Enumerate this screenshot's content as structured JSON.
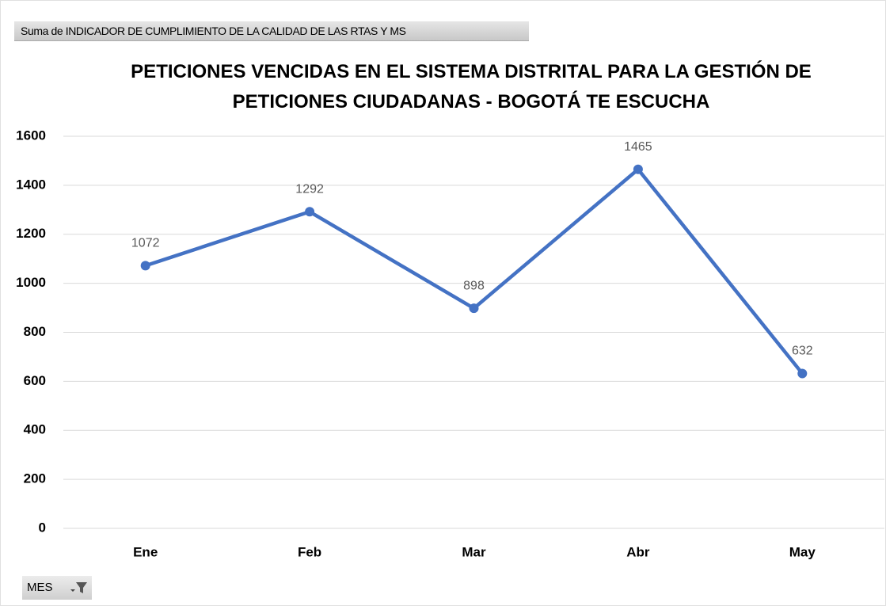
{
  "chart_data": {
    "type": "line",
    "value_field": "Suma de INDICADOR DE CUMPLIMIENTO DE LA CALIDAD DE LAS RTAS Y MS",
    "axis_field": "MES",
    "title": "PETICIONES VENCIDAS EN EL SISTEMA DISTRITAL PARA LA GESTIÓN DE PETICIONES CIUDADANAS - BOGOTÁ TE ESCUCHA",
    "categories": [
      "Ene",
      "Feb",
      "Mar",
      "Abr",
      "May"
    ],
    "values": [
      1072,
      1292,
      898,
      1465,
      632
    ],
    "color": "#4472c4",
    "ylim": [
      0,
      1600
    ],
    "yticks": [
      0,
      200,
      400,
      600,
      800,
      1000,
      1200,
      1400,
      1600
    ],
    "grid": true
  }
}
